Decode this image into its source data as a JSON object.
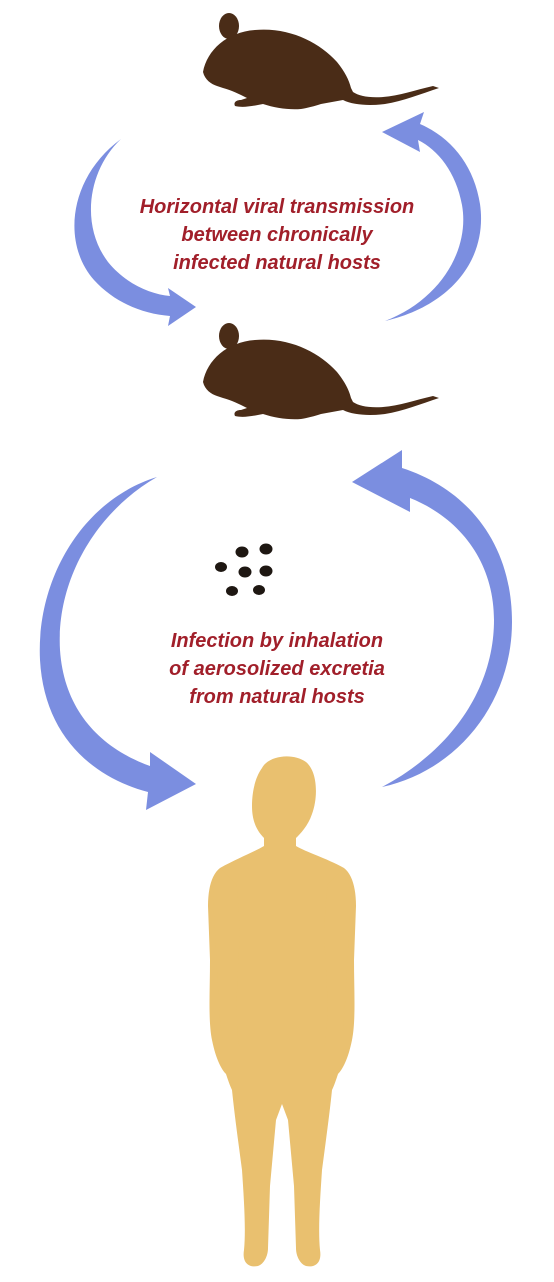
{
  "captions": {
    "horizontal_transmission": {
      "lines": [
        "Horizontal viral transmission",
        "between chronically",
        "infected natural hosts"
      ]
    },
    "inhalation_infection": {
      "lines": [
        "Infection by inhalation",
        "of aerosolized excretia",
        "from natural hosts"
      ]
    }
  },
  "colors": {
    "rodent": "#4a2c17",
    "arrow": "#7b8ee0",
    "human": "#e9c06f",
    "text": "#a11f2a",
    "droplet": "#1e1712"
  },
  "icons": {
    "rodent_top": "mouse-silhouette",
    "rodent_middle": "mouse-silhouette",
    "human": "human-silhouette",
    "excreta": "droplet-particles"
  }
}
